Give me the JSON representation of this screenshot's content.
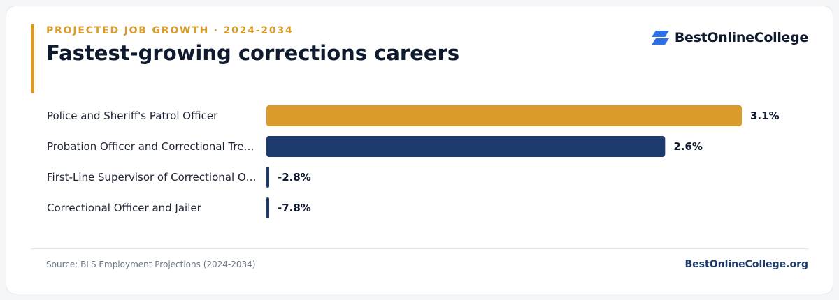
{
  "header": {
    "eyebrow": "PROJECTED JOB GROWTH · 2024-2034",
    "title": "Fastest-growing corrections careers"
  },
  "brand": {
    "name": "BestOnlineCollege",
    "icon": "stacked-chevron-logo-icon",
    "icon_color": "#2f6fe4"
  },
  "footer": {
    "source": "Source: BLS Employment Projections (2024-2034)",
    "site": "BestOnlineCollege.org"
  },
  "colors": {
    "accent": "#db9b2b",
    "navy": "#1c3a6b"
  },
  "chart_data": {
    "type": "bar",
    "orientation": "horizontal",
    "categories": [
      "Police and Sheriff's Patrol Officer",
      "Probation Officer and Correctional Tre…",
      "First-Line Supervisor of Correctional O…",
      "Correctional Officer and Jailer"
    ],
    "values": [
      3.1,
      2.6,
      -2.8,
      -7.8
    ],
    "value_labels": [
      "3.1%",
      "2.6%",
      "-2.8%",
      "-7.8%"
    ],
    "bar_colors": [
      "#db9b2b",
      "#1c3a6b",
      "#1c3a6b",
      "#1c3a6b"
    ],
    "xlim": [
      0,
      3.1
    ],
    "grid": false,
    "legend": "none"
  }
}
